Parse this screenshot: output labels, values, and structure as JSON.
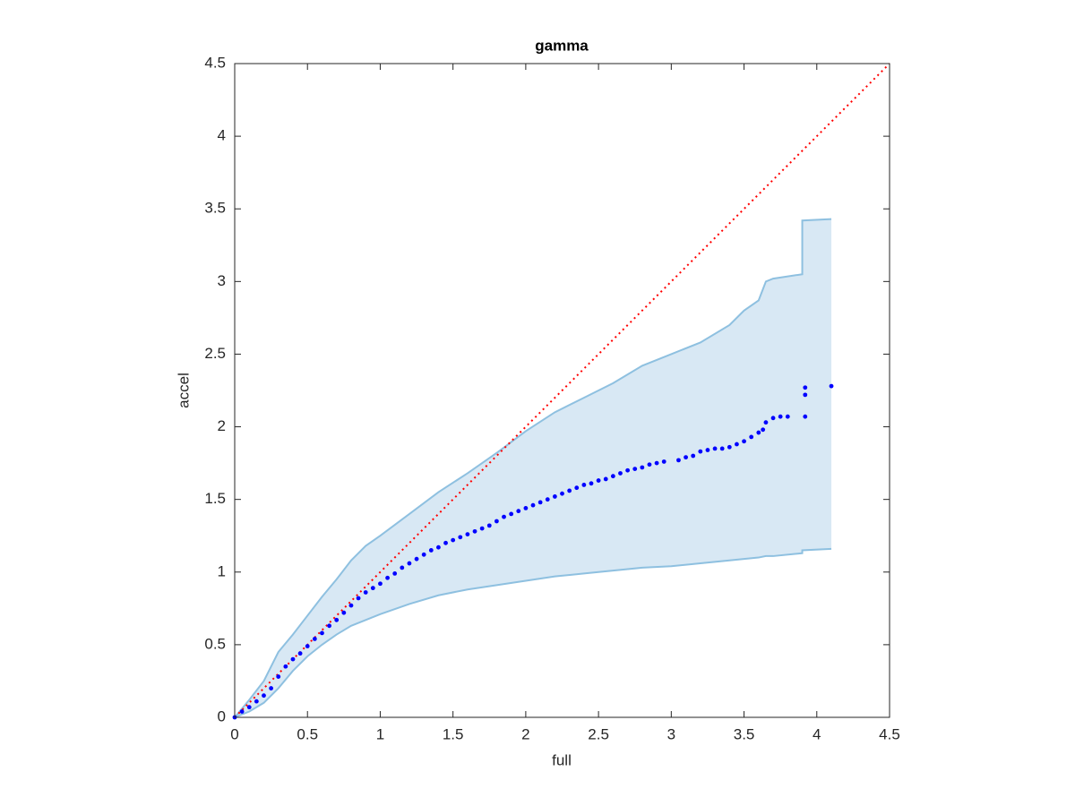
{
  "chart_data": {
    "type": "scatter",
    "title": "gamma",
    "x_label": "full",
    "y_label": "accel",
    "xlim": [
      0,
      4.5
    ],
    "ylim": [
      0,
      4.5
    ],
    "xticks": [
      0,
      0.5,
      1,
      1.5,
      2,
      2.5,
      3,
      3.5,
      4,
      4.5
    ],
    "yticks": [
      0,
      0.5,
      1,
      1.5,
      2,
      2.5,
      3,
      3.5,
      4,
      4.5
    ],
    "band": {
      "color": "#8ec0e0",
      "fill": "#d8e8f4",
      "x": [
        0,
        0.1,
        0.2,
        0.3,
        0.4,
        0.5,
        0.6,
        0.7,
        0.8,
        0.9,
        1.0,
        1.2,
        1.4,
        1.6,
        1.8,
        2.0,
        2.2,
        2.4,
        2.6,
        2.8,
        3.0,
        3.2,
        3.4,
        3.5,
        3.6,
        3.65,
        3.7,
        3.9,
        3.9,
        4.1
      ],
      "upper": [
        0,
        0.12,
        0.25,
        0.45,
        0.57,
        0.7,
        0.83,
        0.95,
        1.08,
        1.18,
        1.25,
        1.4,
        1.55,
        1.68,
        1.82,
        1.97,
        2.1,
        2.2,
        2.3,
        2.42,
        2.5,
        2.58,
        2.7,
        2.8,
        2.87,
        3.0,
        3.02,
        3.05,
        3.42,
        3.43
      ],
      "lower": [
        0,
        0.04,
        0.1,
        0.2,
        0.32,
        0.42,
        0.5,
        0.57,
        0.63,
        0.67,
        0.71,
        0.78,
        0.84,
        0.88,
        0.91,
        0.94,
        0.97,
        0.99,
        1.01,
        1.03,
        1.04,
        1.06,
        1.08,
        1.09,
        1.1,
        1.11,
        1.11,
        1.13,
        1.15,
        1.16
      ]
    },
    "reference_line": {
      "color": "#ff0000",
      "x": [
        0,
        4.5
      ],
      "y": [
        0,
        4.5
      ]
    },
    "points": {
      "color": "#0000ff",
      "x": [
        0,
        0.05,
        0.1,
        0.15,
        0.2,
        0.25,
        0.3,
        0.35,
        0.4,
        0.45,
        0.5,
        0.55,
        0.6,
        0.65,
        0.7,
        0.75,
        0.8,
        0.85,
        0.9,
        0.95,
        1.0,
        1.05,
        1.1,
        1.15,
        1.2,
        1.25,
        1.3,
        1.35,
        1.4,
        1.45,
        1.5,
        1.55,
        1.6,
        1.65,
        1.7,
        1.75,
        1.8,
        1.85,
        1.9,
        1.95,
        2.0,
        2.05,
        2.1,
        2.15,
        2.2,
        2.25,
        2.3,
        2.35,
        2.4,
        2.45,
        2.5,
        2.55,
        2.6,
        2.65,
        2.7,
        2.75,
        2.8,
        2.85,
        2.9,
        2.95,
        3.05,
        3.1,
        3.15,
        3.2,
        3.25,
        3.3,
        3.35,
        3.4,
        3.45,
        3.5,
        3.55,
        3.6,
        3.63,
        3.65,
        3.7,
        3.75,
        3.8,
        3.92,
        3.92,
        3.92,
        4.1
      ],
      "y": [
        0,
        0.04,
        0.07,
        0.11,
        0.15,
        0.2,
        0.28,
        0.35,
        0.4,
        0.44,
        0.49,
        0.54,
        0.58,
        0.63,
        0.67,
        0.72,
        0.77,
        0.82,
        0.86,
        0.89,
        0.92,
        0.96,
        0.99,
        1.03,
        1.06,
        1.09,
        1.12,
        1.15,
        1.17,
        1.2,
        1.22,
        1.24,
        1.26,
        1.28,
        1.3,
        1.32,
        1.35,
        1.38,
        1.4,
        1.42,
        1.44,
        1.46,
        1.48,
        1.5,
        1.52,
        1.54,
        1.56,
        1.58,
        1.6,
        1.61,
        1.63,
        1.64,
        1.66,
        1.68,
        1.7,
        1.71,
        1.72,
        1.74,
        1.75,
        1.76,
        1.77,
        1.79,
        1.8,
        1.83,
        1.84,
        1.85,
        1.85,
        1.86,
        1.88,
        1.9,
        1.93,
        1.96,
        1.98,
        2.03,
        2.06,
        2.07,
        2.07,
        2.07,
        2.22,
        2.27,
        2.28
      ]
    }
  }
}
